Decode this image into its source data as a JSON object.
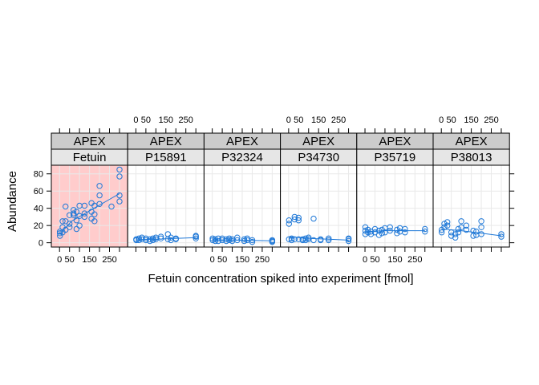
{
  "chart_data": {
    "type": "scatter",
    "layout": "lattice-panels",
    "xlabel": "Fetuin concentration spiked into experiment [fmol]",
    "ylabel": "Abundance",
    "xlim": [
      -25,
      325
    ],
    "ylim": [
      -5,
      90
    ],
    "xticks": [
      0,
      50,
      150,
      250
    ],
    "yticks": [
      0,
      20,
      40,
      60,
      80
    ],
    "strip_top": "APEX",
    "highlight_panel": "Fetuin",
    "colors": {
      "points": "#1f78d7",
      "line": "#1f78d7",
      "highlight_bg": "#ffcccc",
      "strip_top_bg": "#cccccc",
      "strip_bottom_bg": "#e6e6e6",
      "grid": "#e9e9e9"
    },
    "panels": [
      {
        "protein": "Fetuin",
        "points": [
          [
            2,
            8
          ],
          [
            2,
            11
          ],
          [
            2,
            13
          ],
          [
            15,
            12
          ],
          [
            15,
            18
          ],
          [
            15,
            25
          ],
          [
            30,
            15
          ],
          [
            30,
            25
          ],
          [
            30,
            42
          ],
          [
            50,
            18
          ],
          [
            50,
            22
          ],
          [
            50,
            32
          ],
          [
            70,
            32
          ],
          [
            70,
            34
          ],
          [
            70,
            38
          ],
          [
            85,
            16
          ],
          [
            85,
            26
          ],
          [
            85,
            36
          ],
          [
            100,
            20
          ],
          [
            100,
            31
          ],
          [
            100,
            43
          ],
          [
            125,
            30
          ],
          [
            125,
            34
          ],
          [
            125,
            43
          ],
          [
            160,
            28
          ],
          [
            160,
            36
          ],
          [
            160,
            46
          ],
          [
            175,
            25
          ],
          [
            175,
            33
          ],
          [
            175,
            43
          ],
          [
            200,
            45
          ],
          [
            200,
            55
          ],
          [
            200,
            66
          ],
          [
            260,
            42
          ],
          [
            300,
            48
          ],
          [
            300,
            55
          ],
          [
            300,
            77
          ],
          [
            300,
            85
          ]
        ],
        "fit": [
          [
            2,
            10
          ],
          [
            60,
            25
          ],
          [
            120,
            33
          ],
          [
            180,
            41
          ],
          [
            240,
            49
          ],
          [
            300,
            57
          ]
        ]
      },
      {
        "protein": "P15891",
        "points": [
          [
            2,
            3
          ],
          [
            2,
            4
          ],
          [
            15,
            3
          ],
          [
            15,
            5
          ],
          [
            30,
            4
          ],
          [
            30,
            6
          ],
          [
            50,
            3
          ],
          [
            50,
            5
          ],
          [
            70,
            2
          ],
          [
            70,
            4
          ],
          [
            85,
            3
          ],
          [
            85,
            5
          ],
          [
            100,
            4
          ],
          [
            100,
            6
          ],
          [
            125,
            5
          ],
          [
            125,
            7
          ],
          [
            160,
            4
          ],
          [
            160,
            10
          ],
          [
            175,
            3
          ],
          [
            175,
            6
          ],
          [
            200,
            4
          ],
          [
            200,
            5
          ],
          [
            300,
            5
          ],
          [
            300,
            7
          ],
          [
            300,
            8
          ]
        ],
        "fit": [
          [
            2,
            3.5
          ],
          [
            100,
            4
          ],
          [
            200,
            5
          ],
          [
            300,
            6
          ]
        ]
      },
      {
        "protein": "P32324",
        "points": [
          [
            2,
            3
          ],
          [
            2,
            5
          ],
          [
            15,
            2
          ],
          [
            15,
            4
          ],
          [
            30,
            2
          ],
          [
            30,
            5
          ],
          [
            50,
            3
          ],
          [
            50,
            5
          ],
          [
            70,
            2
          ],
          [
            70,
            4
          ],
          [
            85,
            3
          ],
          [
            85,
            5
          ],
          [
            100,
            2
          ],
          [
            100,
            4
          ],
          [
            125,
            3
          ],
          [
            125,
            6
          ],
          [
            160,
            2
          ],
          [
            160,
            4
          ],
          [
            175,
            3
          ],
          [
            175,
            5
          ],
          [
            200,
            1
          ],
          [
            200,
            3
          ],
          [
            300,
            1
          ],
          [
            300,
            2
          ],
          [
            300,
            3
          ]
        ],
        "fit": [
          [
            2,
            3.5
          ],
          [
            100,
            3
          ],
          [
            200,
            2.6
          ],
          [
            300,
            2.2
          ]
        ]
      },
      {
        "protein": "P34730",
        "points": [
          [
            2,
            4
          ],
          [
            2,
            22
          ],
          [
            2,
            26
          ],
          [
            15,
            3
          ],
          [
            15,
            5
          ],
          [
            30,
            4
          ],
          [
            30,
            27
          ],
          [
            30,
            30
          ],
          [
            50,
            4
          ],
          [
            50,
            26
          ],
          [
            50,
            29
          ],
          [
            70,
            3
          ],
          [
            70,
            4
          ],
          [
            85,
            3
          ],
          [
            85,
            5
          ],
          [
            100,
            4
          ],
          [
            100,
            6
          ],
          [
            125,
            3
          ],
          [
            125,
            28
          ],
          [
            160,
            3
          ],
          [
            160,
            4
          ],
          [
            200,
            3
          ],
          [
            200,
            5
          ],
          [
            300,
            2
          ],
          [
            300,
            4
          ],
          [
            300,
            5
          ]
        ],
        "fit": [
          [
            2,
            7
          ],
          [
            100,
            5
          ],
          [
            200,
            4
          ],
          [
            300,
            3
          ]
        ]
      },
      {
        "protein": "P35719",
        "points": [
          [
            2,
            10
          ],
          [
            2,
            14
          ],
          [
            2,
            18
          ],
          [
            15,
            12
          ],
          [
            15,
            15
          ],
          [
            30,
            10
          ],
          [
            30,
            13
          ],
          [
            50,
            12
          ],
          [
            50,
            16
          ],
          [
            70,
            9
          ],
          [
            70,
            14
          ],
          [
            85,
            11
          ],
          [
            85,
            15
          ],
          [
            100,
            12
          ],
          [
            100,
            17
          ],
          [
            125,
            14
          ],
          [
            125,
            18
          ],
          [
            160,
            11
          ],
          [
            160,
            15
          ],
          [
            175,
            13
          ],
          [
            175,
            17
          ],
          [
            200,
            12
          ],
          [
            200,
            16
          ],
          [
            300,
            13
          ],
          [
            300,
            16
          ]
        ],
        "fit": [
          [
            2,
            13
          ],
          [
            100,
            14
          ],
          [
            200,
            14
          ],
          [
            300,
            14
          ]
        ]
      },
      {
        "protein": "P38013",
        "points": [
          [
            2,
            12
          ],
          [
            2,
            15
          ],
          [
            15,
            18
          ],
          [
            15,
            22
          ],
          [
            30,
            20
          ],
          [
            30,
            24
          ],
          [
            50,
            8
          ],
          [
            50,
            12
          ],
          [
            70,
            6
          ],
          [
            70,
            10
          ],
          [
            85,
            12
          ],
          [
            85,
            16
          ],
          [
            100,
            18
          ],
          [
            100,
            25
          ],
          [
            125,
            15
          ],
          [
            125,
            20
          ],
          [
            160,
            8
          ],
          [
            160,
            14
          ],
          [
            175,
            9
          ],
          [
            175,
            13
          ],
          [
            200,
            10
          ],
          [
            200,
            18
          ],
          [
            200,
            25
          ],
          [
            300,
            7
          ],
          [
            300,
            10
          ]
        ],
        "fit": [
          [
            2,
            16
          ],
          [
            100,
            14
          ],
          [
            200,
            11
          ],
          [
            300,
            8
          ]
        ]
      }
    ]
  }
}
